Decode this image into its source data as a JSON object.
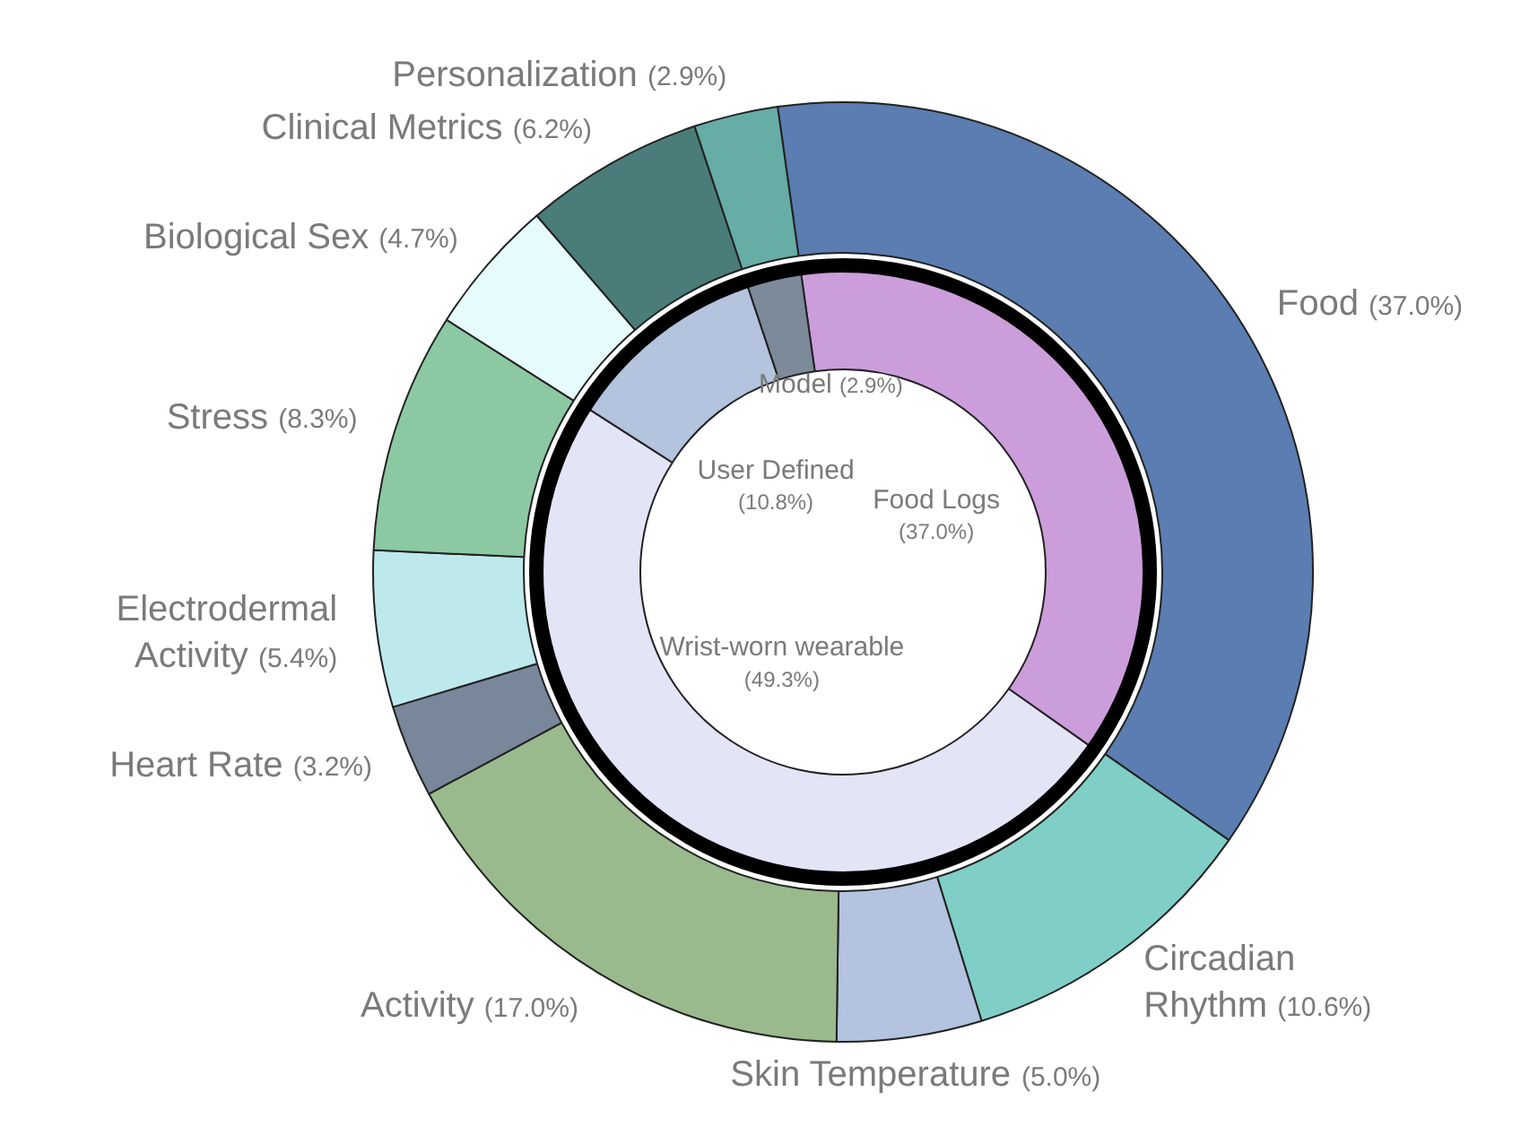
{
  "chart_data": [
    {
      "type": "donut",
      "legend": false,
      "categories": [
        "Food",
        "Circadian Rhythm",
        "Skin Temperature",
        "Activity",
        "Heart Rate",
        "Electrodermal Activity",
        "Stress",
        "Biological Sex",
        "Clinical Metrics",
        "Personalization"
      ],
      "values": [
        37.0,
        10.6,
        5.0,
        17.0,
        3.2,
        5.4,
        8.3,
        4.7,
        6.2,
        2.9
      ],
      "colors": [
        "#5b7db1",
        "#7fcfc6",
        "#b3c3e0",
        "#9aba8e",
        "#79879a",
        "#bde9ec",
        "#8cc9a3",
        "#e6fbfb",
        "#4a7d7a",
        "#66ada6"
      ],
      "value_labels": [
        "(37.0%)",
        "(10.6%)",
        "(5.0%)",
        "(17.0%)",
        "(3.2%)",
        "(5.4%)",
        "(8.3%)",
        "(4.7%)",
        "(6.2%)",
        "(2.9%)"
      ]
    },
    {
      "type": "donut",
      "legend": false,
      "categories": [
        "Food Logs",
        "Wrist-worn wearable",
        "User Defined",
        "Model"
      ],
      "values": [
        37.0,
        49.3,
        10.8,
        2.9
      ],
      "colors": [
        "#cc9ddb",
        "#e4e4f7",
        "#b4c3de",
        "#7c8a9a"
      ],
      "value_labels": [
        "(37.0%)",
        "(49.3%)",
        "(10.8%)",
        "(2.9%)"
      ]
    }
  ]
}
